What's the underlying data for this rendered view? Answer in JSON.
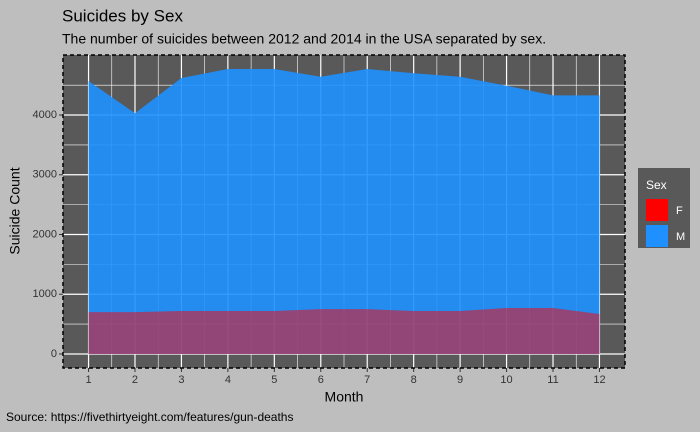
{
  "chart_data": {
    "type": "area",
    "title": "Suicides by Sex",
    "subtitle": "The number of suicides between 2012 and 2014 in the USA separated by sex.",
    "x_label": "Month",
    "y_label": "Suicide Count",
    "caption": "Source: https://fivethirtyeight.com/features/gun-deaths",
    "legend_title": "Sex",
    "x": [
      1,
      2,
      3,
      4,
      5,
      6,
      7,
      8,
      9,
      10,
      11,
      12
    ],
    "series": [
      {
        "name": "M",
        "color": "#1e90ff",
        "values": [
          4570,
          4030,
          4620,
          4770,
          4770,
          4640,
          4770,
          4700,
          4640,
          4490,
          4330,
          4330
        ]
      },
      {
        "name": "F",
        "color": "#ff0000",
        "values": [
          700,
          700,
          720,
          720,
          720,
          750,
          750,
          720,
          720,
          770,
          770,
          670
        ]
      }
    ],
    "alpha": 0.5,
    "xlim": [
      0.45,
      12.55
    ],
    "xticks": [
      1,
      2,
      3,
      4,
      5,
      6,
      7,
      8,
      9,
      10,
      11,
      12
    ],
    "ylim": [
      -235,
      5005
    ],
    "yticks": [
      0,
      1000,
      2000,
      3000,
      4000
    ],
    "grid": true
  }
}
